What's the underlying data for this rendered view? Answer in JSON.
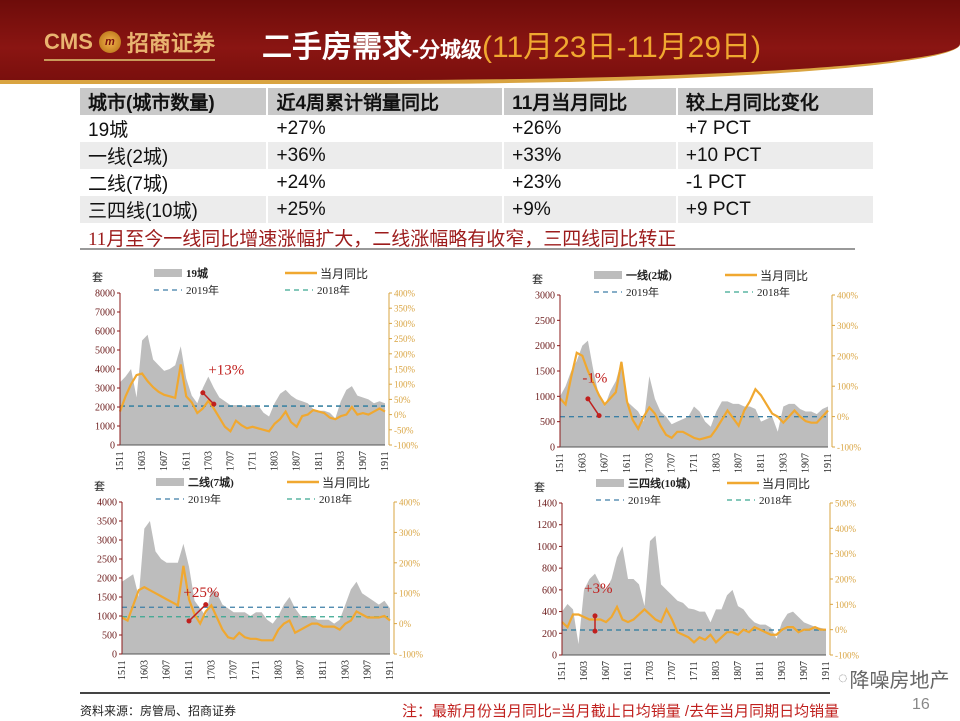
{
  "header": {
    "logo_text": "CMS",
    "logo_coin": "m",
    "logo_cn": "招商证券",
    "title": "二手房需求",
    "title_sub": "-分城级",
    "title_date": "(11月23日-11月29日)"
  },
  "table": {
    "headers": [
      "城市(城市数量)",
      "近4周累计销量同比",
      "11月当月同比",
      "较上月同比变化"
    ],
    "rows": [
      [
        "19城",
        "+27%",
        "+26%",
        "+7 PCT"
      ],
      [
        "一线(2城)",
        "+36%",
        "+33%",
        "+10 PCT"
      ],
      [
        "二线(7城)",
        "+24%",
        "+23%",
        "-1 PCT"
      ],
      [
        "三四线(10城)",
        "+25%",
        "+9%",
        "+9 PCT"
      ]
    ]
  },
  "conclusion": "11月至今一线同比增速涨幅扩大，二线涨幅略有收窄，三四线同比转正",
  "chart_data": [
    {
      "type": "area+line",
      "unit": "套",
      "area_name": "19城",
      "line_name": "当月同比",
      "ref_names": [
        "2019年",
        "2018年"
      ],
      "ylim": [
        0,
        8000
      ],
      "yticks": [
        0,
        1000,
        2000,
        3000,
        4000,
        5000,
        6000,
        7000,
        8000
      ],
      "y2lim": [
        -100,
        400
      ],
      "y2ticks": [
        -100,
        -50,
        0,
        50,
        100,
        150,
        200,
        250,
        300,
        350,
        400
      ],
      "xticks": [
        "1511",
        "1603",
        "1607",
        "1611",
        "1703",
        "1707",
        "1711",
        "1803",
        "1807",
        "1811",
        "1903",
        "1907",
        "1911"
      ],
      "ref_values": [
        2050,
        2050
      ],
      "annotation": "+13%",
      "grid": false,
      "legend": "top",
      "area": [
        3300,
        3600,
        4000,
        2500,
        5500,
        5800,
        4500,
        4200,
        3900,
        4000,
        4200,
        5200,
        3500,
        2600,
        2200,
        3000,
        3600,
        3000,
        2500,
        2300,
        2100,
        2100,
        2100,
        2000,
        2100,
        2100,
        1700,
        1500,
        2200,
        2700,
        2900,
        2600,
        2400,
        2300,
        2200,
        1900,
        1800,
        1800,
        1700,
        1400,
        2300,
        2900,
        3100,
        2600,
        2500,
        2400,
        2200,
        2300,
        2200
      ],
      "line": [
        10,
        60,
        100,
        130,
        135,
        110,
        90,
        75,
        65,
        60,
        55,
        165,
        60,
        40,
        5,
        20,
        45,
        20,
        -10,
        -40,
        -55,
        -20,
        -35,
        -45,
        -40,
        -45,
        -50,
        -55,
        -30,
        -15,
        10,
        -25,
        -40,
        -5,
        0,
        15,
        10,
        5,
        -10,
        -15,
        -5,
        0,
        25,
        0,
        5,
        0,
        10,
        20,
        10
      ]
    },
    {
      "type": "area+line",
      "unit": "套",
      "area_name": "一线(2城)",
      "line_name": "当月同比",
      "ref_names": [
        "2019年",
        "2018年"
      ],
      "ylim": [
        0,
        3000
      ],
      "yticks": [
        0,
        500,
        1000,
        1500,
        2000,
        2500,
        3000
      ],
      "y2lim": [
        -100,
        400
      ],
      "y2ticks": [
        -100,
        0,
        100,
        200,
        300,
        400
      ],
      "xticks": [
        "1511",
        "1603",
        "1607",
        "1611",
        "1703",
        "1707",
        "1711",
        "1803",
        "1807",
        "1811",
        "1903",
        "1907",
        "1911"
      ],
      "ref_values": [
        600,
        600
      ],
      "annotation": "-1%",
      "grid": false,
      "legend": "top",
      "area": [
        1000,
        1200,
        1500,
        1700,
        2000,
        2100,
        1500,
        1000,
        800,
        1100,
        1300,
        1700,
        900,
        800,
        700,
        500,
        1400,
        950,
        700,
        600,
        450,
        500,
        550,
        600,
        800,
        700,
        500,
        400,
        700,
        900,
        900,
        850,
        850,
        800,
        800,
        750,
        500,
        550,
        600,
        300,
        800,
        850,
        850,
        750,
        700,
        700,
        650,
        750,
        800
      ],
      "line": [
        60,
        40,
        130,
        210,
        200,
        150,
        110,
        70,
        40,
        60,
        80,
        180,
        50,
        -10,
        -40,
        0,
        30,
        10,
        -30,
        -60,
        -70,
        -50,
        -50,
        -60,
        -70,
        -75,
        -70,
        -65,
        -40,
        -10,
        20,
        -5,
        -30,
        20,
        50,
        90,
        70,
        40,
        10,
        0,
        -20,
        0,
        20,
        0,
        -15,
        -20,
        -20,
        0,
        20
      ]
    },
    {
      "type": "area+line",
      "unit": "套",
      "area_name": "二线(7城)",
      "line_name": "当月同比",
      "ref_names": [
        "2019年",
        "2018年"
      ],
      "ylim": [
        0,
        4000
      ],
      "yticks": [
        0,
        500,
        1000,
        1500,
        2000,
        2500,
        3000,
        3500,
        4000
      ],
      "y2lim": [
        -100,
        400
      ],
      "y2ticks": [
        -100,
        0,
        100,
        200,
        300,
        400
      ],
      "xticks": [
        "1511",
        "1603",
        "1607",
        "1611",
        "1703",
        "1707",
        "1711",
        "1803",
        "1807",
        "1811",
        "1903",
        "1907",
        "1911"
      ],
      "ref_values": [
        1230,
        980
      ],
      "annotation": "+25%",
      "grid": false,
      "legend": "top",
      "area": [
        1900,
        2000,
        2100,
        1500,
        3300,
        3500,
        2700,
        2500,
        2400,
        2400,
        2400,
        2900,
        2300,
        1400,
        1200,
        1000,
        1700,
        1600,
        1300,
        1200,
        1100,
        1100,
        1100,
        1000,
        1100,
        1100,
        900,
        800,
        1000,
        1300,
        1500,
        1200,
        1000,
        1000,
        1000,
        900,
        900,
        900,
        800,
        900,
        1300,
        1700,
        1900,
        1600,
        1500,
        1400,
        1300,
        1400,
        1200
      ],
      "line": [
        20,
        10,
        60,
        110,
        120,
        110,
        100,
        90,
        80,
        70,
        60,
        190,
        80,
        30,
        0,
        40,
        60,
        20,
        -20,
        -45,
        -50,
        -30,
        -45,
        -50,
        -50,
        -55,
        -55,
        -55,
        -20,
        0,
        10,
        -30,
        -20,
        -10,
        0,
        0,
        -10,
        -10,
        -10,
        -20,
        0,
        10,
        40,
        30,
        20,
        20,
        20,
        25,
        10
      ]
    },
    {
      "type": "area+line",
      "unit": "套",
      "area_name": "三四线(10城)",
      "line_name": "当月同比",
      "ref_names": [
        "2019年",
        "2018年"
      ],
      "ylim": [
        0,
        1400
      ],
      "yticks": [
        0,
        200,
        400,
        600,
        800,
        1000,
        1200,
        1400
      ],
      "y2lim": [
        -100,
        500
      ],
      "y2ticks": [
        -100,
        0,
        100,
        200,
        300,
        400,
        500
      ],
      "xticks": [
        "1511",
        "1603",
        "1607",
        "1611",
        "1703",
        "1707",
        "1711",
        "1803",
        "1807",
        "1811",
        "1903",
        "1907",
        "1911"
      ],
      "ref_values": [
        230,
        230
      ],
      "annotation": "+3%",
      "grid": false,
      "legend": "top",
      "area": [
        400,
        470,
        420,
        100,
        600,
        700,
        750,
        650,
        600,
        700,
        900,
        1000,
        700,
        700,
        650,
        450,
        1050,
        1100,
        650,
        600,
        550,
        500,
        480,
        430,
        420,
        400,
        400,
        300,
        420,
        420,
        550,
        600,
        450,
        420,
        350,
        300,
        280,
        280,
        250,
        150,
        300,
        380,
        400,
        350,
        300,
        280,
        260,
        250,
        240
      ],
      "line": [
        30,
        10,
        60,
        60,
        50,
        40,
        40,
        40,
        30,
        50,
        90,
        40,
        30,
        40,
        60,
        80,
        60,
        40,
        30,
        80,
        40,
        -10,
        -20,
        -30,
        -50,
        -30,
        -40,
        -20,
        -50,
        -30,
        -10,
        -10,
        -20,
        0,
        -10,
        10,
        0,
        -10,
        -20,
        -20,
        0,
        10,
        10,
        -10,
        0,
        0,
        10,
        0,
        0
      ]
    }
  ],
  "colors": {
    "area": "#bdbdbd",
    "line": "#f0a830",
    "ref_2019": "#3d7ea6",
    "ref_2018": "#3aa890",
    "annotation": "#c0201e",
    "left_axis": "#8b1a1a",
    "right_axis": "#d9a441"
  },
  "footer": {
    "source": "资料来源：房管局、招商证券",
    "note": "注：最新月份当月同比=当月截止日均销量 /去年当月同期日均销量",
    "page": "16",
    "watermark": "降噪房地产"
  }
}
